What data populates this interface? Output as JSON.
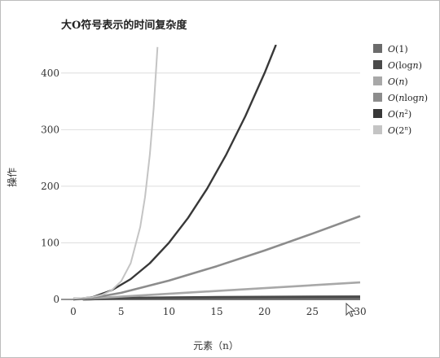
{
  "chart_data": {
    "type": "line",
    "title": "大O符号表示的时间复杂度",
    "xlabel": "元素（n）",
    "ylabel": "操作",
    "xlim": [
      0,
      30
    ],
    "ylim": [
      0,
      450
    ],
    "x_ticks": [
      "0",
      "5",
      "10",
      "15",
      "20",
      "25",
      "30"
    ],
    "y_ticks": [
      "0",
      "100",
      "200",
      "300",
      "400"
    ],
    "grid": true,
    "legend_position": "right",
    "series": [
      {
        "name": "O(1)",
        "legend_parts": [
          "O",
          "(1)",
          ""
        ],
        "color": "#6b6b6b",
        "x": [
          0,
          30
        ],
        "y": [
          1,
          1
        ]
      },
      {
        "name": "O(logn)",
        "legend_parts": [
          "O",
          "(log",
          "n",
          ")"
        ],
        "color": "#4a4a4a",
        "x": [
          1,
          5,
          10,
          15,
          20,
          25,
          30
        ],
        "y": [
          0,
          2.3,
          3.3,
          3.9,
          4.3,
          4.6,
          4.9
        ]
      },
      {
        "name": "O(n)",
        "legend_parts": [
          "O",
          "(",
          "n",
          ")"
        ],
        "color": "#a8a8a8",
        "x": [
          0,
          30
        ],
        "y": [
          0,
          30
        ]
      },
      {
        "name": "O(nlogn)",
        "legend_parts": [
          "O",
          "(",
          "n",
          "log",
          "n",
          ")"
        ],
        "color": "#8c8c8c",
        "x": [
          1,
          5,
          10,
          15,
          20,
          25,
          30
        ],
        "y": [
          0,
          11.6,
          33.2,
          58.6,
          86.4,
          116.1,
          147.2
        ]
      },
      {
        "name": "O(n²)",
        "legend_parts": [
          "O",
          "(",
          "n",
          "2",
          ")"
        ],
        "color": "#383838",
        "x": [
          0,
          2,
          4,
          6,
          8,
          10,
          12,
          14,
          16,
          18,
          20,
          21.2
        ],
        "y": [
          0,
          4,
          16,
          36,
          64,
          100,
          144,
          196,
          256,
          324,
          400,
          450
        ]
      },
      {
        "name": "O(2ⁿ)",
        "legend_parts": [
          "O",
          "(2",
          "n",
          ")"
        ],
        "color": "#c4c4c4",
        "x": [
          0,
          2,
          3,
          4,
          5,
          6,
          7,
          7.5,
          8,
          8.4,
          8.8
        ],
        "y": [
          1,
          4,
          8,
          16,
          32,
          64,
          128,
          181,
          256,
          338,
          446
        ]
      }
    ]
  }
}
